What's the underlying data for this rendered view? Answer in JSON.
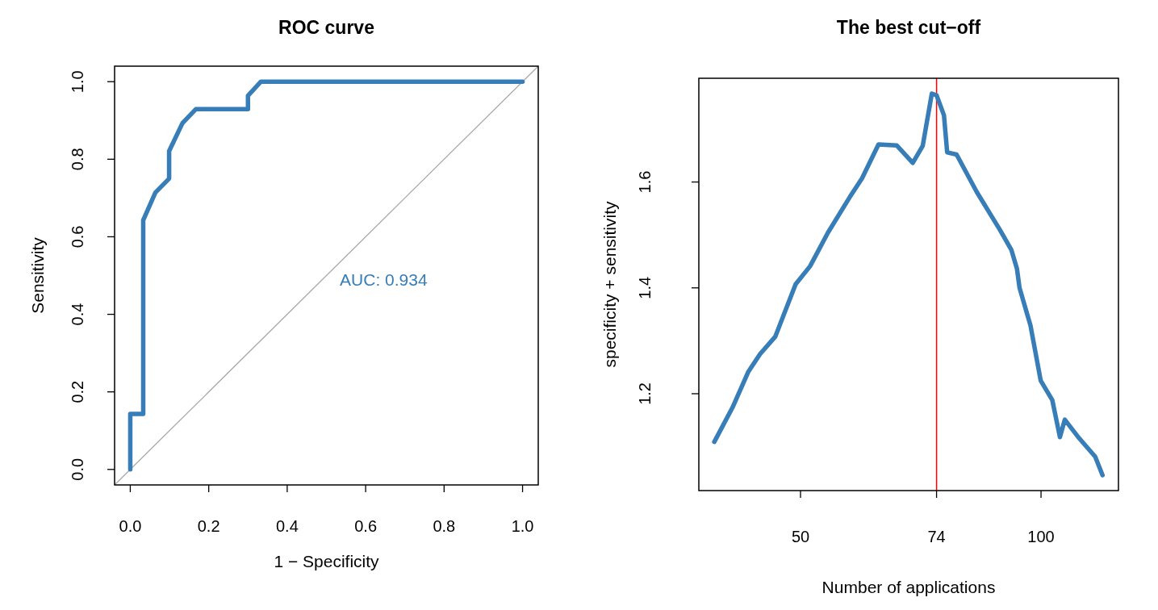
{
  "chart_data": [
    {
      "type": "line",
      "title": "ROC curve",
      "xlabel": "1 − Specificity",
      "ylabel": "Sensitivity",
      "xlim": [
        -0.04,
        1.04
      ],
      "ylim": [
        -0.04,
        1.04
      ],
      "xticks": [
        {
          "value": 0,
          "label": "0.0"
        },
        {
          "value": 0.2,
          "label": "0.2"
        },
        {
          "value": 0.4,
          "label": "0.4"
        },
        {
          "value": 0.6,
          "label": "0.6"
        },
        {
          "value": 0.8,
          "label": "0.8"
        },
        {
          "value": 1,
          "label": "1.0"
        }
      ],
      "yticks": [
        {
          "value": 0,
          "label": "0.0"
        },
        {
          "value": 0.2,
          "label": "0.2"
        },
        {
          "value": 0.4,
          "label": "0.4"
        },
        {
          "value": 0.6,
          "label": "0.6"
        },
        {
          "value": 0.8,
          "label": "0.8"
        },
        {
          "value": 1,
          "label": "1.0"
        }
      ],
      "series": [
        {
          "color": "#377eb8",
          "x": [
            0,
            0,
            0.033,
            0.033,
            0.064,
            0.099,
            0.099,
            0.133,
            0.167,
            0.3,
            0.3,
            0.333,
            1
          ],
          "values": [
            0,
            0.143,
            0.143,
            0.643,
            0.714,
            0.75,
            0.821,
            0.893,
            0.929,
            0.929,
            0.964,
            1,
            1
          ]
        },
        {
          "color": "#aaaaaa",
          "x": [
            -0.04,
            1.04
          ],
          "values": [
            -0.04,
            1.04
          ]
        }
      ],
      "annotations": [
        "AUC: 0.934"
      ]
    },
    {
      "type": "line",
      "title": "The best cut−off",
      "xlabel": "Number of applications",
      "ylabel": "specificity + sensitivity",
      "log": "x",
      "xlim": [
        37.3,
        125
      ],
      "ylim": [
        1.017,
        1.796
      ],
      "xticks": [
        50,
        74,
        100
      ],
      "yticks": [
        1.2,
        1.4,
        1.6
      ],
      "series": [
        {
          "color": "#377eb8",
          "x": [
            39,
            41.1,
            43,
            44.5,
            46.5,
            49.3,
            51.4,
            54.1,
            57.6,
            59.7,
            62.6,
            66,
            69.1,
            71.1,
            73,
            74,
            75.6,
            76.3,
            78.4,
            83.1,
            88.8,
            91.8,
            93.3,
            94,
            97,
            99.9,
            103.3,
            105.6,
            107.1,
            111.6,
            116.9,
            119.4
          ],
          "values": [
            1.109,
            1.174,
            1.241,
            1.275,
            1.308,
            1.407,
            1.441,
            1.504,
            1.571,
            1.607,
            1.671,
            1.669,
            1.636,
            1.668,
            1.767,
            1.764,
            1.726,
            1.656,
            1.652,
            1.581,
            1.51,
            1.472,
            1.436,
            1.4,
            1.329,
            1.225,
            1.188,
            1.118,
            1.151,
            1.116,
            1.081,
            1.046
          ]
        }
      ],
      "ref_lines": [
        {
          "axis": "x",
          "value": 74,
          "color": "#ff0000"
        }
      ]
    }
  ]
}
